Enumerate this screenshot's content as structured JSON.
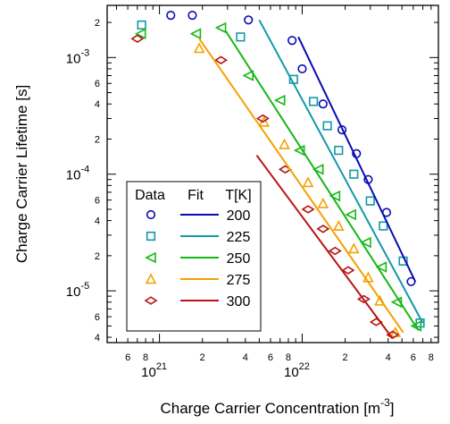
{
  "chart_data": {
    "type": "scatter",
    "xlabel": "Charge Carrier Concentration [m",
    "xlabel_sup": "-3",
    "xlabel_close": "]",
    "ylabel": "Charge Carrier Lifetime [s]",
    "x_scale": "log",
    "y_scale": "log",
    "xlim": [
      4.3e+20,
      9e+22
    ],
    "ylim": [
      3.6e-06,
      0.0028
    ],
    "grid": false,
    "legend": {
      "placement": "lower-left",
      "headers": [
        "Data",
        "Fit",
        "T[K]"
      ]
    },
    "x_major_ticks": [
      {
        "value": 1e+21,
        "base": "10",
        "exp": "21"
      },
      {
        "value": 1e+22,
        "base": "10",
        "exp": "22"
      }
    ],
    "x_minor_tick_labels": [
      {
        "value": 6e+20,
        "label": "6"
      },
      {
        "value": 8e+20,
        "label": "8"
      },
      {
        "value": 2e+21,
        "label": "2"
      },
      {
        "value": 4e+21,
        "label": "4"
      },
      {
        "value": 6e+21,
        "label": "6"
      },
      {
        "value": 8e+21,
        "label": "8"
      },
      {
        "value": 2e+22,
        "label": "2"
      },
      {
        "value": 4e+22,
        "label": "4"
      },
      {
        "value": 6e+22,
        "label": "6"
      },
      {
        "value": 8e+22,
        "label": "8"
      }
    ],
    "y_major_ticks": [
      {
        "value": 0.001,
        "base": "10",
        "exp": "-3"
      },
      {
        "value": 0.0001,
        "base": "10",
        "exp": "-4"
      },
      {
        "value": 1e-05,
        "base": "10",
        "exp": "-5"
      }
    ],
    "y_minor_tick_labels": [
      {
        "value": 0.002,
        "label": "2"
      },
      {
        "value": 0.0006,
        "label": "6"
      },
      {
        "value": 0.0004,
        "label": "4"
      },
      {
        "value": 0.0002,
        "label": "2"
      },
      {
        "value": 6e-05,
        "label": "6"
      },
      {
        "value": 4e-05,
        "label": "4"
      },
      {
        "value": 2e-05,
        "label": "2"
      },
      {
        "value": 6e-06,
        "label": "6"
      },
      {
        "value": 4e-06,
        "label": "4"
      }
    ],
    "series": [
      {
        "name": "200",
        "marker": "circle",
        "color": "#0a0ab4",
        "x": [
          1.2e+21,
          1.7e+21,
          4.2e+21,
          8.5e+21,
          1e+22,
          1.4e+22,
          1.9e+22,
          2.4e+22,
          2.9e+22,
          3.9e+22,
          5.8e+22
        ],
        "y": [
          0.0023,
          0.0023,
          0.0021,
          0.0014,
          0.0008,
          0.0004,
          0.00024,
          0.00015,
          9e-05,
          4.7e-05,
          1.2e-05
        ],
        "fit": {
          "x": [
            9.4e+21,
            6.2e+22
          ],
          "y": [
            0.0015,
            1.2e-05
          ]
        }
      },
      {
        "name": "225",
        "marker": "square",
        "color": "#1199a8",
        "x": [
          7.5e+20,
          3.7e+21,
          8.7e+21,
          1.2e+22,
          1.5e+22,
          1.8e+22,
          2.3e+22,
          3e+22,
          3.7e+22,
          5.1e+22,
          6.7e+22
        ],
        "y": [
          0.0019,
          0.0015,
          0.00065,
          0.00042,
          0.00026,
          0.00016,
          0.0001,
          5.9e-05,
          3.6e-05,
          1.8e-05,
          5.3e-06
        ],
        "fit": {
          "x": [
            5e+21,
            7e+22
          ],
          "y": [
            0.0021,
            5.3e-06
          ]
        }
      },
      {
        "name": "250",
        "marker": "triangle-left",
        "color": "#14b814",
        "x": [
          7.4e+20,
          1.8e+21,
          2.7e+21,
          4.2e+21,
          7e+21,
          9.6e+21,
          1.3e+22,
          1.7e+22,
          2.2e+22,
          2.8e+22,
          3.6e+22,
          4.6e+22,
          6.3e+22
        ],
        "y": [
          0.0016,
          0.0016,
          0.0018,
          0.0007,
          0.00043,
          0.00016,
          0.00011,
          6.5e-05,
          4.5e-05,
          2.6e-05,
          1.6e-05,
          8e-06,
          5e-06
        ],
        "fit": {
          "x": [
            2.9e+21,
            6.5e+22
          ],
          "y": [
            0.0017,
            4.6e-06
          ]
        }
      },
      {
        "name": "275",
        "marker": "triangle-up",
        "color": "#f5a000",
        "x": [
          1.9e+21,
          5.4e+21,
          7.5e+21,
          1.1e+22,
          1.4e+22,
          1.8e+22,
          2.3e+22,
          2.9e+22,
          3.5e+22,
          4.5e+22
        ],
        "y": [
          0.0012,
          0.00028,
          0.00018,
          8.5e-05,
          5.6e-05,
          3.6e-05,
          2.3e-05,
          1.3e-05,
          8.2e-06,
          4.4e-06
        ],
        "fit": {
          "x": [
            1.9e+21,
            5.1e+22
          ],
          "y": [
            0.00145,
            4.4e-06
          ]
        }
      },
      {
        "name": "300",
        "marker": "diamond",
        "color": "#b81414",
        "x": [
          7e+20,
          2.7e+21,
          5.3e+21,
          7.6e+21,
          1.1e+22,
          1.4e+22,
          1.7e+22,
          2.1e+22,
          2.7e+22,
          3.3e+22,
          4.3e+22
        ],
        "y": [
          0.00145,
          0.00095,
          0.0003,
          0.00011,
          5e-05,
          3.4e-05,
          2.2e-05,
          1.5e-05,
          8.5e-06,
          5.4e-06,
          4.2e-06
        ],
        "fit": {
          "x": [
            4.8e+21,
            4.3e+22
          ],
          "y": [
            0.000145,
            3.9e-06
          ]
        }
      }
    ]
  }
}
